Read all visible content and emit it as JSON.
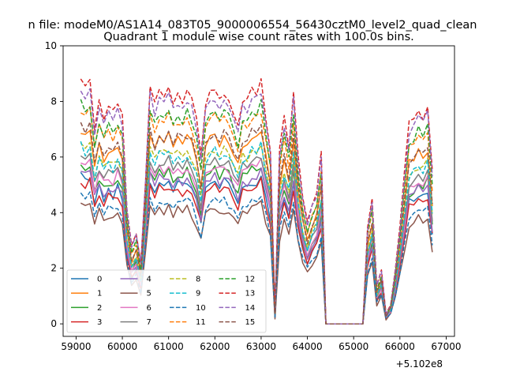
{
  "chart_data": {
    "type": "line",
    "suptitle": "n file: modeM0/AS1A14_083T05_9000006554_56430cztM0_level2_quad_clean",
    "title": "Quadrant 1 module wise count rates with 100.0s bins.",
    "xlabel": "",
    "ylabel": "",
    "x_offset_label": "+5.102e8",
    "xlim": [
      58720,
      67180
    ],
    "ylim": [
      -0.45,
      10
    ],
    "xticks": [
      59000,
      60000,
      61000,
      62000,
      63000,
      64000,
      65000,
      66000,
      67000
    ],
    "xtick_labels": [
      "59000",
      "60000",
      "61000",
      "62000",
      "63000",
      "64000",
      "65000",
      "66000",
      "67000"
    ],
    "yticks": [
      0,
      2,
      4,
      6,
      8,
      10
    ],
    "ytick_labels": [
      "0",
      "2",
      "4",
      "6",
      "8",
      "10"
    ],
    "grid": false,
    "legend_placement": "lower-left",
    "legend_columns": 4,
    "x": [
      59100,
      59200,
      59300,
      59400,
      59500,
      59600,
      59700,
      59800,
      59900,
      60000,
      60100,
      60200,
      60300,
      60400,
      60500,
      60600,
      60700,
      60800,
      60900,
      61000,
      61100,
      61200,
      61300,
      61400,
      61500,
      61600,
      61700,
      61800,
      61900,
      62000,
      62100,
      62200,
      62300,
      62400,
      62500,
      62600,
      62700,
      62800,
      62900,
      63000,
      63100,
      63200,
      63300,
      63400,
      63500,
      63600,
      63700,
      63800,
      63900,
      64000,
      64100,
      64200,
      64300,
      64400,
      64500,
      64600,
      64700,
      64800,
      64900,
      65000,
      65100,
      65200,
      65300,
      65400,
      65500,
      65600,
      65700,
      65800,
      65900,
      66000,
      66100,
      66200,
      66300,
      66400,
      66500,
      66600,
      66700
    ],
    "base_profile": [
      1.0,
      0.97,
      1.0,
      0.82,
      0.93,
      0.85,
      0.9,
      0.87,
      0.92,
      0.85,
      0.48,
      0.32,
      0.38,
      0.25,
      0.6,
      0.98,
      0.9,
      0.95,
      0.94,
      0.97,
      0.92,
      0.95,
      0.93,
      0.96,
      0.92,
      0.84,
      0.7,
      0.92,
      0.95,
      0.97,
      0.93,
      0.96,
      0.94,
      0.88,
      0.82,
      0.93,
      0.92,
      0.97,
      0.96,
      1.0,
      0.85,
      0.72,
      0.05,
      0.72,
      0.85,
      0.74,
      0.95,
      0.68,
      0.52,
      0.42,
      0.5,
      0.55,
      0.7,
      0.0,
      0.0,
      0.0,
      0.0,
      0.0,
      0.0,
      0.0,
      0.0,
      0.0,
      0.4,
      0.52,
      0.16,
      0.22,
      0.04,
      0.08,
      0.22,
      0.4,
      0.62,
      0.82,
      0.85,
      0.88,
      0.86,
      0.9,
      0.62
    ],
    "series": [
      {
        "name": "0",
        "color": "#1f77b4",
        "dash": "solid",
        "level": 5.3
      },
      {
        "name": "1",
        "color": "#ff7f0e",
        "dash": "solid",
        "level": 7.0
      },
      {
        "name": "2",
        "color": "#2ca02c",
        "dash": "solid",
        "level": 5.7
      },
      {
        "name": "3",
        "color": "#d62728",
        "dash": "solid",
        "level": 5.1
      },
      {
        "name": "4",
        "color": "#9467bd",
        "dash": "solid",
        "level": 5.5
      },
      {
        "name": "5",
        "color": "#8c564b",
        "dash": "solid",
        "level": 4.3
      },
      {
        "name": "6",
        "color": "#e377c2",
        "dash": "solid",
        "level": 5.9
      },
      {
        "name": "7",
        "color": "#7f7f7f",
        "dash": "solid",
        "level": 6.1
      },
      {
        "name": "8",
        "color": "#bcbd22",
        "dash": "dashed",
        "level": 6.5
      },
      {
        "name": "9",
        "color": "#17becf",
        "dash": "dashed",
        "level": 6.4
      },
      {
        "name": "10",
        "color": "#1f77b4",
        "dash": "dashed",
        "level": 4.6
      },
      {
        "name": "11",
        "color": "#ff7f0e",
        "dash": "dashed",
        "level": 7.7
      },
      {
        "name": "12",
        "color": "#2ca02c",
        "dash": "dashed",
        "level": 7.9
      },
      {
        "name": "13",
        "color": "#d62728",
        "dash": "dashed",
        "level": 8.7
      },
      {
        "name": "14",
        "color": "#9467bd",
        "dash": "dashed",
        "level": 8.4
      },
      {
        "name": "15",
        "color": "#8c564b",
        "dash": "dashed",
        "level": 7.1
      }
    ]
  }
}
